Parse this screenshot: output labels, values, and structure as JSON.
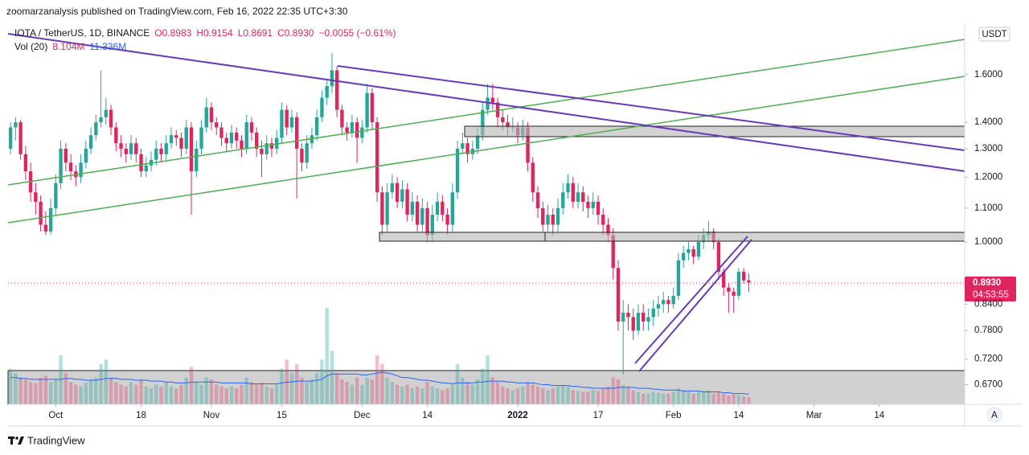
{
  "header": {
    "title": "zoomarzanalysis published on TradingView.com, Feb 16, 2022 22:35 UTC+3:30"
  },
  "chart_data": {
    "type": "candlestick",
    "symbol": "IOTA / TetherUS, 1D, BINANCE",
    "ohlc_legend": [
      {
        "value": 0.8983,
        "label": "O0.8983"
      },
      {
        "value": 0.9154,
        "label": "H0.9154"
      },
      {
        "value": 0.8691,
        "label": "L0.8691"
      },
      {
        "value": 0.893,
        "label": "C0.8930"
      },
      {
        "value": -0.0055,
        "label": "−0.0055 (−0.61%)"
      }
    ],
    "volume_name": "Vol (20)",
    "volume_legend": [
      {
        "value": 8.104,
        "label": "8.104M"
      },
      {
        "value": 11.336,
        "label": "11.336M"
      }
    ],
    "currency": "USDT",
    "scale_mode": "A",
    "last_price": {
      "value": 0.893,
      "label": "0.8930"
    },
    "countdown": "04:53:55",
    "log_scale": true,
    "grid": false,
    "up_color": "#26a69a",
    "down_color": "#e0245e",
    "vol_up_color": "rgba(38,166,154,0.35)",
    "vol_down_color": "rgba(224,36,94,0.3)",
    "vol_ma_color": "#2962ff",
    "xlim": [
      -0.5,
      190
    ],
    "xticks": [
      {
        "value": 9,
        "label": "Oct"
      },
      {
        "value": 26,
        "label": "18"
      },
      {
        "value": 40,
        "label": "Nov"
      },
      {
        "value": 54,
        "label": "15"
      },
      {
        "value": 70,
        "label": "Dec"
      },
      {
        "value": 83,
        "label": "14"
      },
      {
        "value": 101,
        "label": "2022"
      },
      {
        "value": 117,
        "label": "17"
      },
      {
        "value": 132,
        "label": "Feb"
      },
      {
        "value": 145,
        "label": "14"
      },
      {
        "value": 160,
        "label": "Mar"
      },
      {
        "value": 173,
        "label": "14"
      }
    ],
    "ylim": [
      0.634,
      1.832
    ],
    "yticks": [
      {
        "value": 1.6,
        "label": "1.6000"
      },
      {
        "value": 1.4,
        "label": "1.4000"
      },
      {
        "value": 1.3,
        "label": "1.3000"
      },
      {
        "value": 1.2,
        "label": "1.2000"
      },
      {
        "value": 1.1,
        "label": "1.1000"
      },
      {
        "value": 1.0,
        "label": "1.0000"
      },
      {
        "value": 0.84,
        "label": "0.8400"
      },
      {
        "value": 0.78,
        "label": "0.7800"
      },
      {
        "value": 0.72,
        "label": "0.7200"
      },
      {
        "value": 0.67,
        "label": "0.6700"
      }
    ],
    "y2lim": [
      0,
      423
    ],
    "candles": [
      [
        1.3,
        1.4,
        1.28,
        1.38
      ],
      [
        1.38,
        1.42,
        1.33,
        1.4
      ],
      [
        1.4,
        1.41,
        1.26,
        1.28
      ],
      [
        1.28,
        1.31,
        1.19,
        1.22
      ],
      [
        1.22,
        1.25,
        1.12,
        1.15
      ],
      [
        1.15,
        1.18,
        1.08,
        1.12
      ],
      [
        1.12,
        1.14,
        1.03,
        1.05
      ],
      [
        1.05,
        1.09,
        1.02,
        1.03
      ],
      [
        1.03,
        1.13,
        1.02,
        1.1
      ],
      [
        1.1,
        1.21,
        1.08,
        1.18
      ],
      [
        1.18,
        1.33,
        1.16,
        1.3
      ],
      [
        1.3,
        1.32,
        1.22,
        1.25
      ],
      [
        1.25,
        1.28,
        1.19,
        1.22
      ],
      [
        1.22,
        1.24,
        1.17,
        1.2
      ],
      [
        1.2,
        1.28,
        1.18,
        1.25
      ],
      [
        1.25,
        1.33,
        1.23,
        1.3
      ],
      [
        1.3,
        1.38,
        1.28,
        1.35
      ],
      [
        1.35,
        1.43,
        1.33,
        1.4
      ],
      [
        1.4,
        1.62,
        1.38,
        1.42
      ],
      [
        1.42,
        1.5,
        1.39,
        1.45
      ],
      [
        1.45,
        1.47,
        1.35,
        1.38
      ],
      [
        1.38,
        1.4,
        1.29,
        1.32
      ],
      [
        1.32,
        1.35,
        1.27,
        1.3
      ],
      [
        1.3,
        1.32,
        1.25,
        1.28
      ],
      [
        1.28,
        1.35,
        1.26,
        1.32
      ],
      [
        1.32,
        1.34,
        1.25,
        1.28
      ],
      [
        1.28,
        1.3,
        1.2,
        1.22
      ],
      [
        1.22,
        1.27,
        1.2,
        1.24
      ],
      [
        1.24,
        1.29,
        1.22,
        1.26
      ],
      [
        1.26,
        1.33,
        1.24,
        1.3
      ],
      [
        1.3,
        1.32,
        1.25,
        1.28
      ],
      [
        1.28,
        1.35,
        1.26,
        1.32
      ],
      [
        1.32,
        1.38,
        1.3,
        1.35
      ],
      [
        1.35,
        1.37,
        1.31,
        1.34
      ],
      [
        1.34,
        1.36,
        1.27,
        1.3
      ],
      [
        1.3,
        1.41,
        1.28,
        1.38
      ],
      [
        1.38,
        1.4,
        1.08,
        1.22
      ],
      [
        1.22,
        1.33,
        1.2,
        1.3
      ],
      [
        1.3,
        1.41,
        1.28,
        1.38
      ],
      [
        1.38,
        1.5,
        1.36,
        1.46
      ],
      [
        1.46,
        1.48,
        1.37,
        1.4
      ],
      [
        1.4,
        1.42,
        1.35,
        1.38
      ],
      [
        1.38,
        1.4,
        1.31,
        1.34
      ],
      [
        1.34,
        1.36,
        1.29,
        1.32
      ],
      [
        1.32,
        1.39,
        1.3,
        1.36
      ],
      [
        1.36,
        1.38,
        1.3,
        1.33
      ],
      [
        1.33,
        1.35,
        1.27,
        1.3
      ],
      [
        1.3,
        1.43,
        1.28,
        1.4
      ],
      [
        1.4,
        1.42,
        1.33,
        1.36
      ],
      [
        1.36,
        1.38,
        1.27,
        1.3
      ],
      [
        1.3,
        1.33,
        1.2,
        1.28
      ],
      [
        1.28,
        1.35,
        1.26,
        1.32
      ],
      [
        1.32,
        1.34,
        1.27,
        1.3
      ],
      [
        1.3,
        1.37,
        1.28,
        1.34
      ],
      [
        1.34,
        1.48,
        1.32,
        1.45
      ],
      [
        1.45,
        1.47,
        1.35,
        1.38
      ],
      [
        1.38,
        1.45,
        1.36,
        1.42
      ],
      [
        1.42,
        1.44,
        1.13,
        1.3
      ],
      [
        1.3,
        1.32,
        1.22,
        1.25
      ],
      [
        1.25,
        1.35,
        1.23,
        1.32
      ],
      [
        1.32,
        1.38,
        1.3,
        1.35
      ],
      [
        1.35,
        1.45,
        1.33,
        1.42
      ],
      [
        1.42,
        1.53,
        1.4,
        1.5
      ],
      [
        1.5,
        1.58,
        1.47,
        1.55
      ],
      [
        1.55,
        1.7,
        1.52,
        1.62
      ],
      [
        1.62,
        1.64,
        1.42,
        1.45
      ],
      [
        1.45,
        1.47,
        1.35,
        1.38
      ],
      [
        1.38,
        1.4,
        1.33,
        1.36
      ],
      [
        1.36,
        1.43,
        1.34,
        1.4
      ],
      [
        1.4,
        1.42,
        1.25,
        1.34
      ],
      [
        1.34,
        1.41,
        1.32,
        1.38
      ],
      [
        1.38,
        1.56,
        1.36,
        1.52
      ],
      [
        1.52,
        1.54,
        1.37,
        1.4
      ],
      [
        1.4,
        1.42,
        1.12,
        1.15
      ],
      [
        1.15,
        1.17,
        1.02,
        1.05
      ],
      [
        1.05,
        1.18,
        1.03,
        1.15
      ],
      [
        1.15,
        1.21,
        1.13,
        1.18
      ],
      [
        1.18,
        1.2,
        1.1,
        1.12
      ],
      [
        1.12,
        1.19,
        1.1,
        1.16
      ],
      [
        1.16,
        1.18,
        1.06,
        1.08
      ],
      [
        1.08,
        1.15,
        1.06,
        1.12
      ],
      [
        1.12,
        1.14,
        1.03,
        1.05
      ],
      [
        1.05,
        1.13,
        1.03,
        1.1
      ],
      [
        1.1,
        1.12,
        1.0,
        1.02
      ],
      [
        1.02,
        1.11,
        1.0,
        1.08
      ],
      [
        1.08,
        1.15,
        1.06,
        1.12
      ],
      [
        1.12,
        1.14,
        1.06,
        1.08
      ],
      [
        1.08,
        1.1,
        1.02,
        1.05
      ],
      [
        1.05,
        1.18,
        1.03,
        1.15
      ],
      [
        1.15,
        1.33,
        1.13,
        1.3
      ],
      [
        1.3,
        1.36,
        1.28,
        1.32
      ],
      [
        1.32,
        1.34,
        1.25,
        1.28
      ],
      [
        1.28,
        1.33,
        1.26,
        1.3
      ],
      [
        1.3,
        1.38,
        1.28,
        1.35
      ],
      [
        1.35,
        1.48,
        1.33,
        1.45
      ],
      [
        1.45,
        1.56,
        1.43,
        1.5
      ],
      [
        1.5,
        1.56,
        1.45,
        1.48
      ],
      [
        1.48,
        1.5,
        1.38,
        1.42
      ],
      [
        1.42,
        1.45,
        1.37,
        1.4
      ],
      [
        1.4,
        1.43,
        1.35,
        1.38
      ],
      [
        1.38,
        1.42,
        1.36,
        1.38
      ],
      [
        1.38,
        1.4,
        1.32,
        1.35
      ],
      [
        1.35,
        1.41,
        1.33,
        1.38
      ],
      [
        1.38,
        1.4,
        1.22,
        1.25
      ],
      [
        1.25,
        1.27,
        1.12,
        1.15
      ],
      [
        1.15,
        1.17,
        1.07,
        1.1
      ],
      [
        1.1,
        1.12,
        1.03,
        1.05
      ],
      [
        1.05,
        1.11,
        1.03,
        1.08
      ],
      [
        1.08,
        1.1,
        1.02,
        1.05
      ],
      [
        1.05,
        1.13,
        1.03,
        1.1
      ],
      [
        1.1,
        1.18,
        1.08,
        1.15
      ],
      [
        1.15,
        1.21,
        1.13,
        1.18
      ],
      [
        1.18,
        1.2,
        1.1,
        1.12
      ],
      [
        1.12,
        1.18,
        1.1,
        1.15
      ],
      [
        1.15,
        1.17,
        1.09,
        1.12
      ],
      [
        1.12,
        1.14,
        1.07,
        1.1
      ],
      [
        1.1,
        1.15,
        1.08,
        1.12
      ],
      [
        1.12,
        1.14,
        1.05,
        1.08
      ],
      [
        1.08,
        1.1,
        1.02,
        1.05
      ],
      [
        1.05,
        1.07,
        1.0,
        1.02
      ],
      [
        1.02,
        1.04,
        0.9,
        0.93
      ],
      [
        0.93,
        0.95,
        0.78,
        0.8
      ],
      [
        0.8,
        0.85,
        0.69,
        0.82
      ],
      [
        0.82,
        0.84,
        0.78,
        0.81
      ],
      [
        0.81,
        0.83,
        0.76,
        0.78
      ],
      [
        0.78,
        0.84,
        0.77,
        0.82
      ],
      [
        0.82,
        0.84,
        0.78,
        0.8
      ],
      [
        0.8,
        0.83,
        0.78,
        0.81
      ],
      [
        0.81,
        0.85,
        0.79,
        0.83
      ],
      [
        0.83,
        0.86,
        0.81,
        0.84
      ],
      [
        0.84,
        0.87,
        0.82,
        0.85
      ],
      [
        0.85,
        0.86,
        0.82,
        0.84
      ],
      [
        0.84,
        0.88,
        0.83,
        0.86
      ],
      [
        0.86,
        0.97,
        0.85,
        0.95
      ],
      [
        0.95,
        0.99,
        0.93,
        0.97
      ],
      [
        0.97,
        1.0,
        0.95,
        0.98
      ],
      [
        0.98,
        0.99,
        0.94,
        0.96
      ],
      [
        0.96,
        1.02,
        0.95,
        1.0
      ],
      [
        1.0,
        1.04,
        0.98,
        1.02
      ],
      [
        1.02,
        1.06,
        1.0,
        1.03
      ],
      [
        1.03,
        1.04,
        0.98,
        1.0
      ],
      [
        1.0,
        1.01,
        0.9,
        0.92
      ],
      [
        0.92,
        0.93,
        0.86,
        0.88
      ],
      [
        0.88,
        0.89,
        0.82,
        0.87
      ],
      [
        0.87,
        0.88,
        0.82,
        0.86
      ],
      [
        0.86,
        0.93,
        0.85,
        0.92
      ],
      [
        0.92,
        0.93,
        0.89,
        0.898
      ],
      [
        0.8983,
        0.9154,
        0.8691,
        0.893
      ]
    ],
    "volume": [
      40,
      35,
      30,
      28,
      25,
      24,
      30,
      32,
      25,
      28,
      55,
      35,
      25,
      22,
      20,
      24,
      28,
      30,
      45,
      50,
      30,
      25,
      22,
      20,
      25,
      22,
      28,
      20,
      18,
      22,
      20,
      25,
      20,
      18,
      22,
      30,
      42,
      25,
      22,
      30,
      28,
      22,
      20,
      18,
      20,
      18,
      22,
      30,
      25,
      22,
      24,
      20,
      18,
      22,
      40,
      50,
      35,
      45,
      30,
      25,
      28,
      35,
      50,
      108,
      60,
      35,
      28,
      25,
      22,
      30,
      22,
      30,
      28,
      55,
      45,
      30,
      25,
      22,
      20,
      22,
      18,
      20,
      18,
      25,
      20,
      18,
      16,
      18,
      22,
      45,
      30,
      25,
      22,
      28,
      40,
      55,
      30,
      25,
      20,
      18,
      16,
      18,
      20,
      25,
      22,
      20,
      18,
      16,
      18,
      20,
      22,
      20,
      16,
      15,
      14,
      14,
      16,
      15,
      18,
      20,
      30,
      28,
      22,
      20,
      16,
      14,
      12,
      12,
      14,
      13,
      12,
      12,
      14,
      18,
      16,
      14,
      12,
      14,
      15,
      16,
      12,
      14,
      12,
      10,
      11,
      10,
      9,
      8.104
    ],
    "vol_ma": [
      30,
      30,
      29,
      29,
      28,
      28,
      28,
      28,
      28,
      28,
      28,
      29,
      29,
      28,
      28,
      27,
      27,
      27,
      28,
      29,
      29,
      29,
      28,
      28,
      28,
      27,
      27,
      27,
      26,
      26,
      26,
      25,
      25,
      24,
      24,
      24,
      25,
      25,
      25,
      25,
      25,
      25,
      24,
      24,
      24,
      24,
      24,
      24,
      23,
      23,
      23,
      23,
      23,
      23,
      24,
      25,
      25,
      26,
      26,
      26,
      26,
      27,
      28,
      32,
      34,
      34,
      34,
      34,
      34,
      34,
      33,
      33,
      34,
      35,
      36,
      35,
      34,
      32,
      30,
      30,
      29,
      28,
      27,
      27,
      26,
      25,
      24,
      24,
      23,
      24,
      24,
      24,
      24,
      25,
      25,
      26,
      26,
      26,
      26,
      25,
      25,
      24,
      24,
      24,
      24,
      23,
      22,
      22,
      21,
      21,
      21,
      21,
      20,
      20,
      19,
      19,
      18,
      18,
      18,
      18,
      18,
      19,
      19,
      19,
      19,
      18,
      18,
      18,
      17,
      17,
      16,
      16,
      16,
      16,
      15,
      15,
      15,
      15,
      14,
      14,
      14,
      14,
      13,
      13,
      12,
      12,
      12,
      11.336
    ]
  },
  "footer": {
    "brand": "TradingView"
  }
}
